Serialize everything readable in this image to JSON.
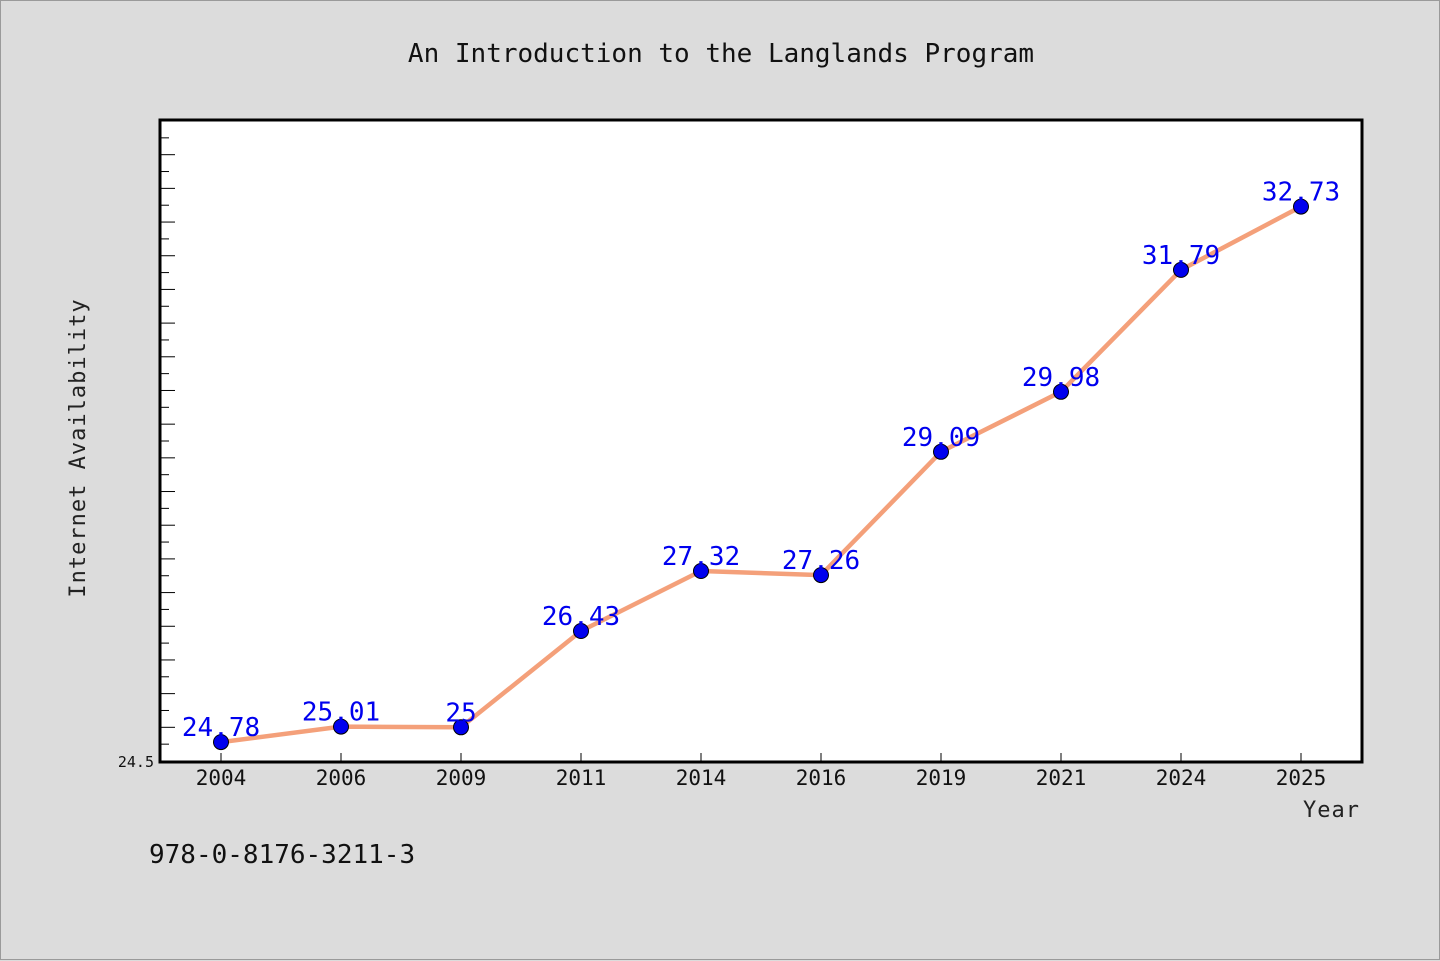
{
  "chart_data": {
    "type": "line",
    "title": "An Introduction to the Langlands Program",
    "xlabel": "Year",
    "ylabel": "Internet Availability",
    "categories": [
      "2004",
      "2006",
      "2009",
      "2011",
      "2014",
      "2016",
      "2019",
      "2021",
      "2024",
      "2025"
    ],
    "series": [
      {
        "values": [
          24.78,
          25.01,
          25,
          26.43,
          27.32,
          27.26,
          29.09,
          29.98,
          31.79,
          32.73
        ],
        "data_labels": [
          "24.78",
          "25.01",
          "25",
          "26.43",
          "27.32",
          "27.26",
          "29.09",
          "29.98",
          "31.79",
          "32.73"
        ],
        "line_color": "#f4a07a",
        "marker_color": "#0000ee"
      }
    ],
    "ylim": [
      24.5,
      34
    ],
    "yticks_labeled": [
      "24.5"
    ],
    "grid": false,
    "legend": "none"
  },
  "footer": {
    "isbn": "978-0-8176-3211-3"
  },
  "colors": {
    "background": "#dcdcdc",
    "plot_background": "#ffffff",
    "line": "#f4a07a",
    "marker": "#0000ee",
    "label": "#0000ee"
  }
}
